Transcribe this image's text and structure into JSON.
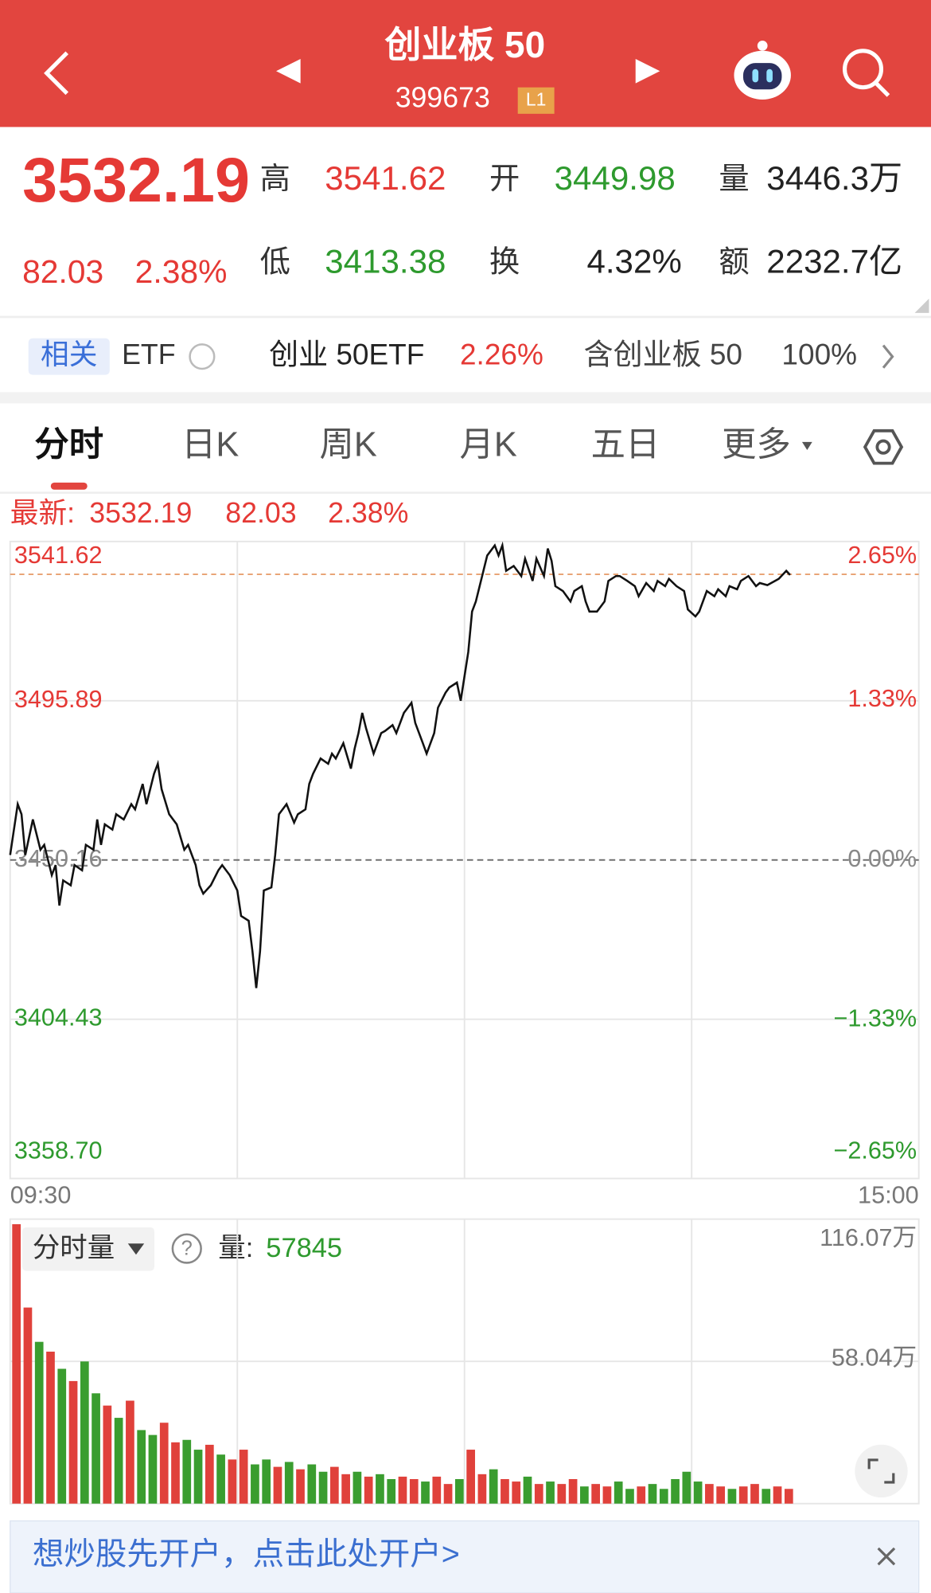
{
  "header": {
    "title": "创业板 50",
    "code": "399673",
    "level": "L1"
  },
  "quote": {
    "price": "3532.19",
    "change": "82.03",
    "change_pct": "2.38%",
    "high_label": "高",
    "high": "3541.62",
    "open_label": "开",
    "open": "3449.98",
    "volume_label": "量",
    "volume": "3446.3万",
    "low_label": "低",
    "low": "3413.38",
    "turnover_label": "换",
    "turnover": "4.32%",
    "amount_label": "额",
    "amount": "2232.7亿"
  },
  "etf": {
    "tag": "相关",
    "label": "ETF",
    "fund": "创业 50ETF",
    "fund_change": "2.26%",
    "holding": "含创业板 50",
    "holding_pct": "100%"
  },
  "tabs": [
    "分时",
    "日K",
    "周K",
    "月K",
    "五日",
    "更多"
  ],
  "latest": {
    "label": "最新:",
    "price": "3532.19",
    "change": "82.03",
    "change_pct": "2.38%"
  },
  "chart_data": [
    {
      "type": "line",
      "color": "#111111",
      "last_price": 3532.19,
      "x": [
        0,
        2,
        3,
        4,
        6,
        8,
        9,
        11,
        12,
        13,
        14,
        16,
        17,
        19,
        20,
        22,
        23,
        24,
        25,
        27,
        28,
        30,
        32,
        33,
        35,
        36,
        38,
        39,
        40,
        42,
        44,
        46,
        47,
        49,
        50,
        51,
        53,
        55,
        56,
        58,
        60,
        61,
        63,
        64,
        65,
        66,
        67,
        69,
        70,
        71,
        73,
        75,
        76,
        78,
        79,
        80,
        82,
        84,
        85,
        86,
        88,
        90,
        91,
        92,
        93,
        94,
        96,
        98,
        99,
        101,
        102,
        104,
        106,
        107,
        109,
        110,
        112,
        113,
        115,
        116,
        118,
        119,
        121,
        122,
        123,
        125,
        126,
        128,
        129,
        130,
        131,
        133,
        135,
        136,
        138,
        139,
        141,
        142,
        143,
        144,
        146,
        148,
        149,
        151,
        152,
        153,
        155,
        157,
        158,
        160,
        161,
        163,
        165,
        166,
        168,
        170,
        171,
        173,
        174,
        176,
        178,
        179,
        181,
        182,
        184,
        186,
        187,
        189,
        190,
        192,
        193,
        195,
        197,
        198,
        200,
        202,
        203,
        205,
        206
      ],
      "values": [
        3451.6,
        3466.2,
        3463.3,
        3451.6,
        3461.8,
        3453.1,
        3454.5,
        3445.8,
        3448.7,
        3437.1,
        3444.3,
        3442.9,
        3448.7,
        3447.2,
        3454.5,
        3453.1,
        3461.8,
        3454.5,
        3460.4,
        3458.9,
        3463.3,
        3461.8,
        3466.2,
        3464.7,
        3472.0,
        3466.2,
        3474.9,
        3477.8,
        3470.5,
        3463.3,
        3460.4,
        3453.1,
        3454.5,
        3448.7,
        3442.9,
        3440.5,
        3442.9,
        3447.2,
        3448.7,
        3445.8,
        3441.4,
        3434.1,
        3432.7,
        3423.9,
        3413.4,
        3423.9,
        3441.4,
        3442.3,
        3451.6,
        3463.3,
        3466.2,
        3460.9,
        3463.3,
        3464.7,
        3472.0,
        3474.9,
        3479.3,
        3477.8,
        3480.7,
        3479.3,
        3483.7,
        3476.4,
        3482.2,
        3486.6,
        3492.4,
        3488.0,
        3480.7,
        3486.6,
        3487.2,
        3488.9,
        3486.6,
        3492.4,
        3495.3,
        3489.5,
        3483.7,
        3480.7,
        3486.6,
        3493.9,
        3498.2,
        3499.7,
        3501.1,
        3495.9,
        3509.9,
        3521.5,
        3524.4,
        3533.2,
        3537.6,
        3540.5,
        3537.6,
        3540.5,
        3533.2,
        3534.6,
        3531.7,
        3536.7,
        3530.3,
        3536.7,
        3531.7,
        3539.6,
        3536.1,
        3528.8,
        3527.4,
        3524.4,
        3527.4,
        3528.8,
        3524.4,
        3521.5,
        3521.5,
        3524.4,
        3530.3,
        3531.7,
        3531.7,
        3530.3,
        3528.8,
        3525.9,
        3529.7,
        3527.4,
        3530.3,
        3528.8,
        3530.9,
        3528.8,
        3527.4,
        3522.1,
        3520.1,
        3521.5,
        3527.4,
        3525.9,
        3527.9,
        3525.9,
        3528.8,
        3527.9,
        3530.3,
        3531.7,
        3528.8,
        3529.7,
        3529.1,
        3530.3,
        3530.9,
        3533.2,
        3532.0
      ],
      "xlim": [
        0,
        240
      ],
      "xticks": [
        {
          "value": 0,
          "label": "09:30"
        },
        {
          "value": 240,
          "label": "15:00"
        }
      ],
      "ylim": [
        3358.7,
        3541.62
      ],
      "yticks": [
        3541.62,
        3495.89,
        3450.16,
        3404.43,
        {
          "value": 3358.7,
          "label": "3358.70"
        }
      ],
      "y2lim": [
        -2.65,
        2.65
      ],
      "y2ticks": [
        {
          "value": 2.65,
          "label": "2.65%"
        },
        {
          "value": 1.33,
          "label": "1.33%"
        },
        {
          "value": 0,
          "label": "0.00%"
        },
        {
          "value": -1.33,
          "label": "−1.33%"
        },
        {
          "value": -2.65,
          "label": "−2.65%"
        }
      ],
      "grid": true
    },
    {
      "type": "bar",
      "x": [
        0,
        3,
        6,
        9,
        12,
        15,
        18,
        21,
        24,
        27,
        30,
        33,
        36,
        39,
        42,
        45,
        48,
        51,
        54,
        57,
        60,
        63,
        66,
        69,
        72,
        75,
        78,
        81,
        84,
        87,
        90,
        93,
        96,
        99,
        102,
        105,
        108,
        111,
        114,
        117,
        120,
        123,
        126,
        129,
        132,
        135,
        138,
        141,
        144,
        147,
        150,
        153,
        156,
        159,
        162,
        165,
        168,
        171,
        174,
        177,
        180,
        183,
        186,
        189,
        192,
        195,
        198,
        201,
        204
      ],
      "values": [
        114,
        80,
        66,
        62,
        55,
        50,
        58,
        45,
        40,
        35,
        42,
        30,
        28,
        33,
        25,
        26,
        22,
        24,
        20,
        18,
        22,
        16,
        18,
        15,
        17,
        14,
        16,
        13,
        15,
        12,
        13,
        11,
        12,
        10,
        11,
        10,
        9,
        11,
        8,
        10,
        22,
        12,
        14,
        10,
        9,
        11,
        8,
        9,
        8,
        10,
        7,
        8,
        7,
        9,
        6,
        7,
        8,
        6,
        10,
        13,
        9,
        8,
        7,
        6,
        7,
        8,
        6,
        7,
        6
      ],
      "colors": [
        "#e0413b",
        "#e0413b",
        "#3a9d2f",
        "#e0413b",
        "#3a9d2f",
        "#e0413b",
        "#3a9d2f",
        "#3a9d2f",
        "#e0413b",
        "#3a9d2f",
        "#e0413b",
        "#3a9d2f",
        "#3a9d2f",
        "#e0413b",
        "#e0413b",
        "#3a9d2f",
        "#3a9d2f",
        "#e0413b",
        "#3a9d2f",
        "#e0413b",
        "#e0413b",
        "#3a9d2f",
        "#3a9d2f",
        "#e0413b",
        "#3a9d2f",
        "#e0413b",
        "#3a9d2f",
        "#3a9d2f",
        "#e0413b",
        "#e0413b",
        "#3a9d2f",
        "#e0413b",
        "#3a9d2f",
        "#3a9d2f",
        "#e0413b",
        "#e0413b",
        "#3a9d2f",
        "#e0413b",
        "#e0413b",
        "#3a9d2f",
        "#e0413b",
        "#e0413b",
        "#3a9d2f",
        "#e0413b",
        "#e0413b",
        "#3a9d2f",
        "#e0413b",
        "#3a9d2f",
        "#e0413b",
        "#e0413b",
        "#3a9d2f",
        "#e0413b",
        "#e0413b",
        "#3a9d2f",
        "#3a9d2f",
        "#e0413b",
        "#3a9d2f",
        "#3a9d2f",
        "#3a9d2f",
        "#3a9d2f",
        "#3a9d2f",
        "#e0413b",
        "#e0413b",
        "#3a9d2f",
        "#e0413b",
        "#e0413b",
        "#3a9d2f",
        "#e0413b",
        "#e0413b"
      ],
      "xlim": [
        0,
        240
      ],
      "ylim": [
        0,
        116.07
      ],
      "yticks": [
        {
          "value": 116.07,
          "label": "116.07万"
        },
        {
          "value": 58.04,
          "label": "58.04万"
        }
      ],
      "grid": true
    }
  ],
  "volume_panel": {
    "selector": "分时量",
    "label": "量:",
    "value": "57845"
  },
  "banner": {
    "text": "想炒股先开户，点击此处开户>"
  }
}
